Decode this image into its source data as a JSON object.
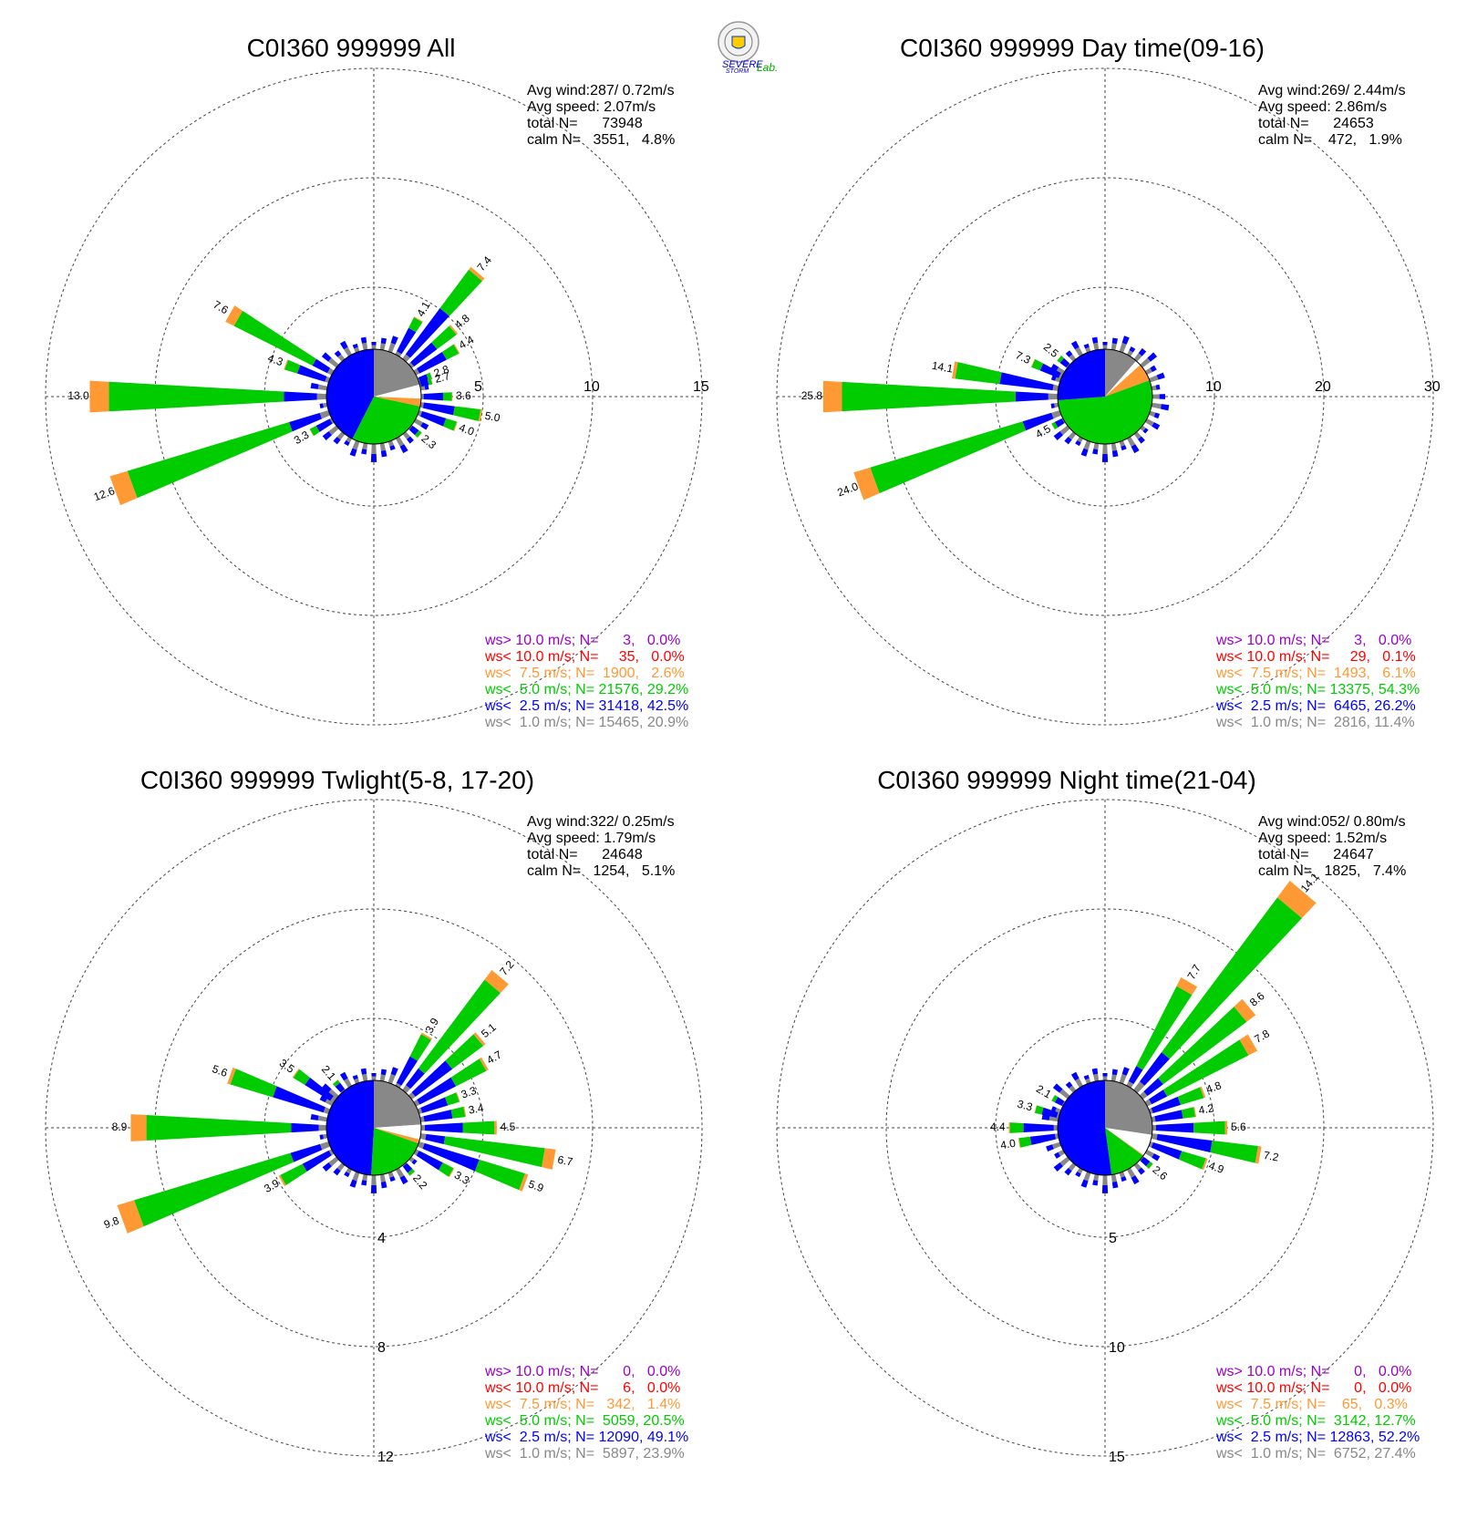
{
  "logo": {
    "text_severe": "SEVERE",
    "text_storm": "STORM",
    "text_lab": "Lab."
  },
  "colors": {
    "gt10": "#9900cc",
    "lt10": "#ff0000",
    "lt7_5": "#ff9933",
    "lt5": "#00cc00",
    "lt2_5": "#0000ff",
    "lt1": "#888888",
    "calm": "#ffffff"
  },
  "chart_data": [
    {
      "type": "wind-rose",
      "title": "C0I360 999999 All",
      "stats": [
        "Avg wind:287/ 0.72m/s",
        "Avg speed: 2.07m/s",
        "total N=      73948",
        "calm N=   3551,   4.8%"
      ],
      "rings": [
        5,
        10,
        15
      ],
      "ring_labels": [
        "5",
        "10",
        "15"
      ],
      "ring_label_side": "right",
      "rmax": 15,
      "labeled_bars": [
        {
          "dir": 30,
          "total": 4.1
        },
        {
          "dir": 40,
          "total": 7.4
        },
        {
          "dir": 50,
          "total": 4.8
        },
        {
          "dir": 60,
          "total": 4.4
        },
        {
          "dir": 70,
          "total": 2.8
        },
        {
          "dir": 75,
          "total": 2.7
        },
        {
          "dir": 90,
          "total": 3.6
        },
        {
          "dir": 100,
          "total": 5.0
        },
        {
          "dir": 110,
          "total": 4.0
        },
        {
          "dir": 130,
          "total": 2.3
        },
        {
          "dir": 240,
          "total": 3.3
        },
        {
          "dir": 250,
          "total": 12.6
        },
        {
          "dir": 270,
          "total": 13.0
        },
        {
          "dir": 290,
          "total": 4.3
        },
        {
          "dir": 300,
          "total": 7.6
        }
      ],
      "center_pie": [
        {
          "class": "lt1",
          "value": 20.9
        },
        {
          "class": "calm",
          "value": 4.8
        },
        {
          "class": "lt7_5",
          "value": 2.6
        },
        {
          "class": "lt5",
          "value": 29.2
        },
        {
          "class": "lt2_5",
          "value": 42.5
        }
      ],
      "legend": [
        {
          "class": "gt10",
          "text": "ws> 10.0 m/s; N=      3,   0.0%"
        },
        {
          "class": "lt10",
          "text": "ws< 10.0 m/s; N=     35,   0.0%"
        },
        {
          "class": "lt7_5",
          "text": "ws<  7.5 m/s; N=  1900,   2.6%"
        },
        {
          "class": "lt5",
          "text": "ws<  5.0 m/s; N= 21576, 29.2%"
        },
        {
          "class": "lt2_5",
          "text": "ws<  2.5 m/s; N= 31418, 42.5%"
        },
        {
          "class": "lt1",
          "text": "ws<  1.0 m/s; N= 15465, 20.9%"
        }
      ]
    },
    {
      "type": "wind-rose",
      "title": "C0I360 999999 Day time(09-16)",
      "stats": [
        "Avg wind:269/ 2.44m/s",
        "Avg speed: 2.86m/s",
        "total N=      24653",
        "calm N=    472,   1.9%"
      ],
      "rings": [
        10,
        20,
        30
      ],
      "ring_labels": [
        "10",
        "20",
        "30"
      ],
      "ring_label_side": "right",
      "rmax": 30,
      "labeled_bars": [
        {
          "dir": 240,
          "total": 4.5
        },
        {
          "dir": 250,
          "total": 24.0
        },
        {
          "dir": 270,
          "total": 25.8
        },
        {
          "dir": 280,
          "total": 14.1
        },
        {
          "dir": 295,
          "total": 7.3
        },
        {
          "dir": 310,
          "total": 2.5
        }
      ],
      "center_pie": [
        {
          "class": "lt1",
          "value": 11.4
        },
        {
          "class": "calm",
          "value": 1.9
        },
        {
          "class": "lt7_5",
          "value": 6.1
        },
        {
          "class": "lt5",
          "value": 54.3
        },
        {
          "class": "lt2_5",
          "value": 26.2
        }
      ],
      "legend": [
        {
          "class": "gt10",
          "text": "ws> 10.0 m/s; N=      3,   0.0%"
        },
        {
          "class": "lt10",
          "text": "ws< 10.0 m/s; N=     29,   0.1%"
        },
        {
          "class": "lt7_5",
          "text": "ws<  7.5 m/s; N=  1493,   6.1%"
        },
        {
          "class": "lt5",
          "text": "ws<  5.0 m/s; N= 13375, 54.3%"
        },
        {
          "class": "lt2_5",
          "text": "ws<  2.5 m/s; N=  6465, 26.2%"
        },
        {
          "class": "lt1",
          "text": "ws<  1.0 m/s; N=  2816, 11.4%"
        }
      ]
    },
    {
      "type": "wind-rose",
      "title": "C0I360 999999 Twlight(5-8, 17-20)",
      "stats": [
        "Avg wind:322/ 0.25m/s",
        "Avg speed: 1.79m/s",
        "total N=      24648",
        "calm N=   1254,   5.1%"
      ],
      "rings": [
        4,
        8,
        12
      ],
      "ring_labels": [
        "4",
        "8",
        "12"
      ],
      "ring_label_side": "bottom",
      "rmax": 12,
      "labeled_bars": [
        {
          "dir": 30,
          "total": 3.9
        },
        {
          "dir": 40,
          "total": 7.2
        },
        {
          "dir": 50,
          "total": 5.1
        },
        {
          "dir": 60,
          "total": 4.7
        },
        {
          "dir": 70,
          "total": 3.3
        },
        {
          "dir": 80,
          "total": 3.4
        },
        {
          "dir": 90,
          "total": 4.5
        },
        {
          "dir": 100,
          "total": 6.7
        },
        {
          "dir": 110,
          "total": 5.9
        },
        {
          "dir": 120,
          "total": 3.3
        },
        {
          "dir": 140,
          "total": 2.2
        },
        {
          "dir": 240,
          "total": 3.9
        },
        {
          "dir": 250,
          "total": 9.8
        },
        {
          "dir": 270,
          "total": 8.9
        },
        {
          "dir": 290,
          "total": 5.6
        },
        {
          "dir": 305,
          "total": 3.5
        },
        {
          "dir": 320,
          "total": 2.1
        }
      ],
      "center_pie": [
        {
          "class": "lt1",
          "value": 23.9
        },
        {
          "class": "calm",
          "value": 5.1
        },
        {
          "class": "lt7_5",
          "value": 1.4
        },
        {
          "class": "lt5",
          "value": 20.5
        },
        {
          "class": "lt2_5",
          "value": 49.1
        }
      ],
      "legend": [
        {
          "class": "gt10",
          "text": "ws> 10.0 m/s; N=      0,   0.0%"
        },
        {
          "class": "lt10",
          "text": "ws< 10.0 m/s; N=      6,   0.0%"
        },
        {
          "class": "lt7_5",
          "text": "ws<  7.5 m/s; N=   342,   1.4%"
        },
        {
          "class": "lt5",
          "text": "ws<  5.0 m/s; N=  5059, 20.5%"
        },
        {
          "class": "lt2_5",
          "text": "ws<  2.5 m/s; N= 12090, 49.1%"
        },
        {
          "class": "lt1",
          "text": "ws<  1.0 m/s; N=  5897, 23.9%"
        }
      ]
    },
    {
      "type": "wind-rose",
      "title": "C0I360 999999 Night time(21-04)",
      "stats": [
        "Avg wind:052/ 0.80m/s",
        "Avg speed: 1.52m/s",
        "total N=      24647",
        "calm N=   1825,   7.4%"
      ],
      "rings": [
        5,
        10,
        15
      ],
      "ring_labels": [
        "5",
        "10",
        "15"
      ],
      "ring_label_side": "bottom",
      "rmax": 15,
      "labeled_bars": [
        {
          "dir": 30,
          "total": 7.7
        },
        {
          "dir": 40,
          "total": 14.1
        },
        {
          "dir": 50,
          "total": 8.6
        },
        {
          "dir": 60,
          "total": 7.8
        },
        {
          "dir": 70,
          "total": 4.8
        },
        {
          "dir": 80,
          "total": 4.2
        },
        {
          "dir": 90,
          "total": 5.6
        },
        {
          "dir": 100,
          "total": 7.2
        },
        {
          "dir": 110,
          "total": 4.9
        },
        {
          "dir": 130,
          "total": 2.6
        },
        {
          "dir": 260,
          "total": 4.0
        },
        {
          "dir": 270,
          "total": 4.4
        },
        {
          "dir": 285,
          "total": 3.3
        },
        {
          "dir": 300,
          "total": 2.1
        }
      ],
      "center_pie": [
        {
          "class": "lt1",
          "value": 27.4
        },
        {
          "class": "calm",
          "value": 7.4
        },
        {
          "class": "lt7_5",
          "value": 0.3
        },
        {
          "class": "lt5",
          "value": 12.7
        },
        {
          "class": "lt2_5",
          "value": 52.2
        }
      ],
      "legend": [
        {
          "class": "gt10",
          "text": "ws> 10.0 m/s; N=      0,   0.0%"
        },
        {
          "class": "lt10",
          "text": "ws< 10.0 m/s; N=      0,   0.0%"
        },
        {
          "class": "lt7_5",
          "text": "ws<  7.5 m/s; N=    65,   0.3%"
        },
        {
          "class": "lt5",
          "text": "ws<  5.0 m/s; N=  3142, 12.7%"
        },
        {
          "class": "lt2_5",
          "text": "ws<  2.5 m/s; N= 12863, 52.2%"
        },
        {
          "class": "lt1",
          "text": "ws<  1.0 m/s; N=  6752, 27.4%"
        }
      ]
    }
  ]
}
